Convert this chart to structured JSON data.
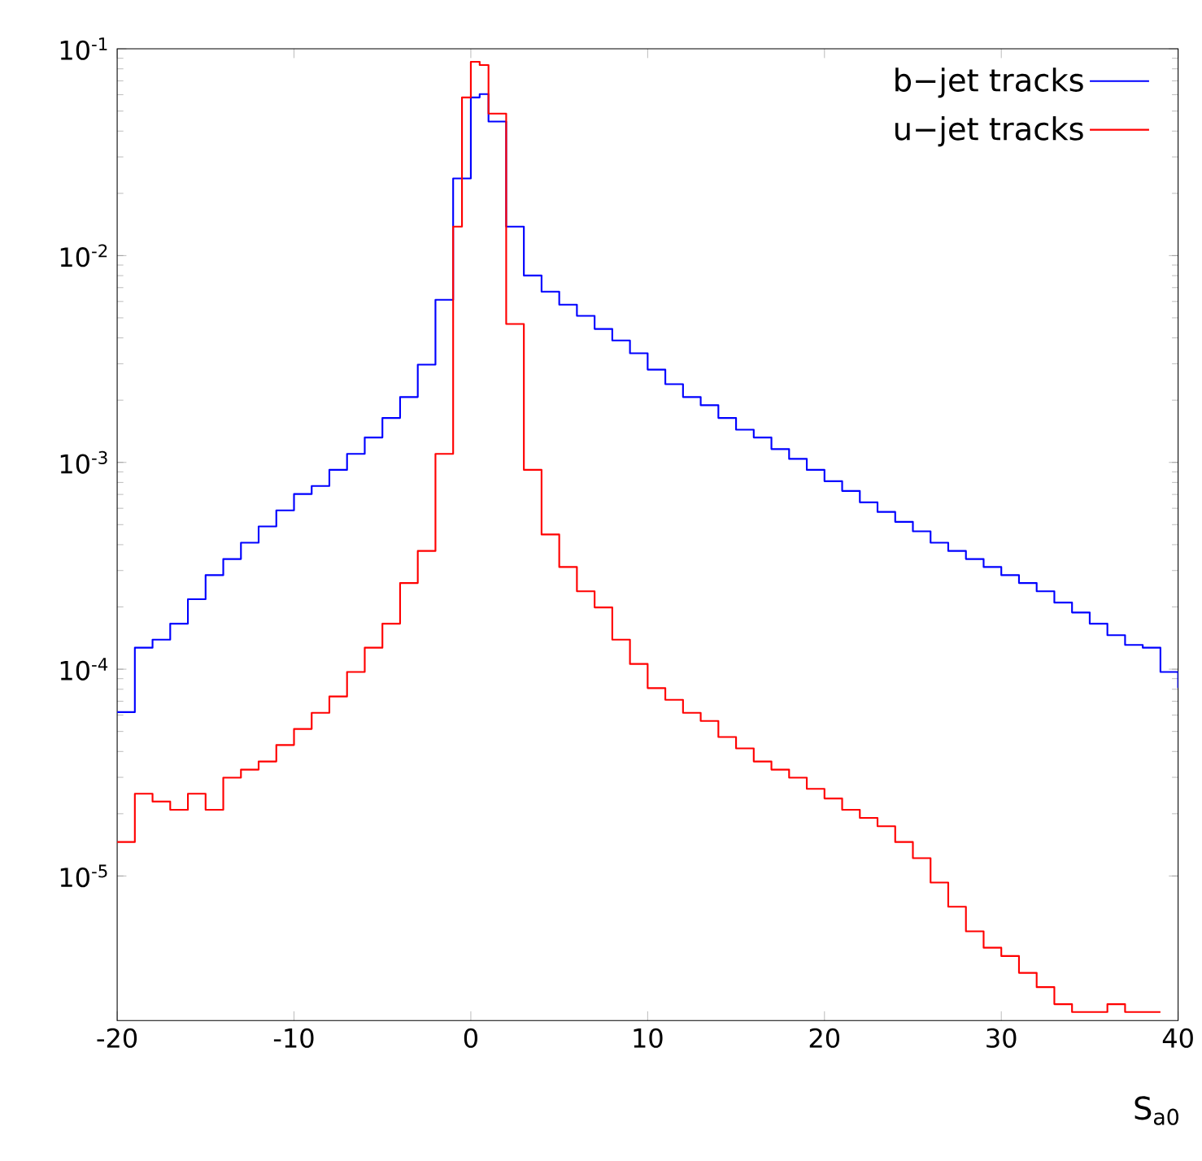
{
  "chart_data": {
    "type": "step",
    "xlabel": "S$_{a0}$",
    "log": "y",
    "legend": "top right",
    "grid": false,
    "xlim": [
      -20,
      40
    ],
    "xticks": [
      -20,
      -10,
      0,
      10,
      20,
      30,
      40
    ],
    "ylim": [
      2e-06,
      0.1
    ],
    "yticks": [
      {
        "value": 1e-05,
        "label": "10$^{-5}$"
      },
      {
        "value": 0.0001,
        "label": "10$^{-4}$"
      },
      {
        "value": 0.001,
        "label": "10$^{-3}$"
      },
      {
        "value": 0.01,
        "label": "10$^{-2}$"
      },
      {
        "value": 0.1,
        "label": "10$^{-1}$"
      }
    ],
    "series": [
      {
        "name": "b−jet tracks",
        "color": "#0000ff",
        "x": [
          -20,
          -19,
          -18,
          -17,
          -16,
          -15,
          -14,
          -13,
          -12,
          -11,
          -10,
          -9,
          -8,
          -7,
          -6,
          -5,
          -4,
          -3,
          -2,
          -1,
          0,
          0.5,
          1,
          2,
          3,
          4,
          5,
          6,
          7,
          8,
          9,
          10,
          11,
          12,
          13,
          14,
          15,
          16,
          17,
          18,
          19,
          20,
          21,
          22,
          23,
          24,
          25,
          26,
          27,
          28,
          29,
          30,
          31,
          32,
          33,
          34,
          35,
          36,
          37,
          38,
          39,
          40
        ],
        "values": [
          6.2e-05,
          0.000127,
          0.000139,
          0.000166,
          0.000218,
          0.000285,
          0.000341,
          0.000409,
          0.00049,
          0.000586,
          0.000703,
          0.000769,
          0.00092,
          0.0011,
          0.00132,
          0.00164,
          0.00207,
          0.00297,
          0.00611,
          0.0236,
          0.0582,
          0.0604,
          0.0445,
          0.0138,
          0.00801,
          0.00669,
          0.00579,
          0.00511,
          0.00442,
          0.00389,
          0.00337,
          0.00281,
          0.00239,
          0.00207,
          0.00189,
          0.00164,
          0.00144,
          0.00132,
          0.00116,
          0.00104,
          0.00092,
          0.000811,
          0.000728,
          0.000641,
          0.000576,
          0.000516,
          0.000464,
          0.000409,
          0.000373,
          0.000341,
          0.000312,
          0.000285,
          0.000261,
          0.000238,
          0.00021,
          0.000188,
          0.000166,
          0.000146,
          0.000131,
          0.000127,
          9.7e-05,
          8.1e-05
        ]
      },
      {
        "name": "u−jet tracks",
        "color": "#ff0000",
        "x": [
          -20,
          -19,
          -18,
          -17,
          -16,
          -15,
          -14,
          -13,
          -12,
          -11,
          -10,
          -9,
          -8,
          -7,
          -6,
          -5,
          -4,
          -3,
          -2,
          -1,
          -0.5,
          0,
          0.5,
          1,
          2,
          3,
          4,
          5,
          6,
          7,
          8,
          9,
          10,
          11,
          12,
          13,
          14,
          15,
          16,
          17,
          18,
          19,
          20,
          21,
          22,
          23,
          24,
          25,
          26,
          27,
          28,
          29,
          30,
          31,
          32,
          33,
          34,
          35,
          36,
          37,
          38,
          39
        ],
        "values": [
          1.46e-05,
          2.5e-05,
          2.29e-05,
          2.09e-05,
          2.5e-05,
          2.09e-05,
          2.99e-05,
          3.27e-05,
          3.58e-05,
          4.3e-05,
          5.14e-05,
          6.15e-05,
          7.38e-05,
          9.7e-05,
          0.000127,
          0.000166,
          0.000261,
          0.000373,
          0.0011,
          0.0138,
          0.0582,
          0.0865,
          0.0835,
          0.0486,
          0.00467,
          0.00092,
          0.000448,
          0.000312,
          0.000238,
          0.000199,
          0.000139,
          0.000106,
          8.1e-05,
          7.11e-05,
          6.15e-05,
          5.62e-05,
          4.7e-05,
          4.14e-05,
          3.58e-05,
          3.27e-05,
          2.99e-05,
          2.64e-05,
          2.37e-05,
          2.09e-05,
          1.91e-05,
          1.74e-05,
          1.46e-05,
          1.22e-05,
          9.3e-06,
          7.1e-06,
          5.4e-06,
          4.5e-06,
          4.1e-06,
          3.4e-06,
          2.9e-06,
          2.4e-06,
          2.2e-06,
          2.2e-06,
          2.4e-06,
          2.2e-06,
          2.2e-06,
          2.2e-06
        ]
      }
    ]
  }
}
